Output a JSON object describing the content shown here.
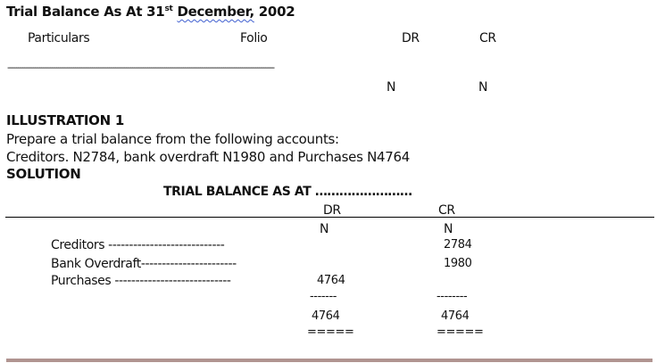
{
  "header": {
    "title_pre": "Trial Balance As At 31",
    "title_sup": "st",
    "title_month": "December,",
    "title_year": "2002",
    "columns": {
      "particulars": "Particulars",
      "folio": "Folio",
      "dr": "DR",
      "cr": "CR"
    },
    "dash_line": "------------------------------------------------------------------------------------------------------------------------------",
    "currency_dr": "N",
    "currency_cr": "N"
  },
  "illustration": {
    "heading": "ILLUSTRATION 1",
    "line1": "Prepare a trial balance from the following accounts:",
    "line2": "Creditors. N2784, bank overdraft N1980 and Purchases N4764",
    "solution": "SOLUTION"
  },
  "solution_table": {
    "title": "TRIAL BALANCE AS AT ……………………",
    "dr": "DR",
    "cr": "CR",
    "currency_dr": "N",
    "currency_cr": "N",
    "rows": [
      {
        "label": "Creditors ----------------------------",
        "dr": "",
        "cr": "2784"
      },
      {
        "label": "Bank Overdraft-----------------------",
        "dr": "",
        "cr": "1980"
      },
      {
        "label": "Purchases ----------------------------",
        "dr": "4764",
        "cr": ""
      }
    ],
    "subtotal_dr": "-------",
    "subtotal_cr": "--------",
    "total_dr": "4764",
    "total_cr": "4764",
    "double_dr": "=====",
    "double_cr": "====="
  },
  "colors": {
    "footer_bar": "#b09490"
  }
}
